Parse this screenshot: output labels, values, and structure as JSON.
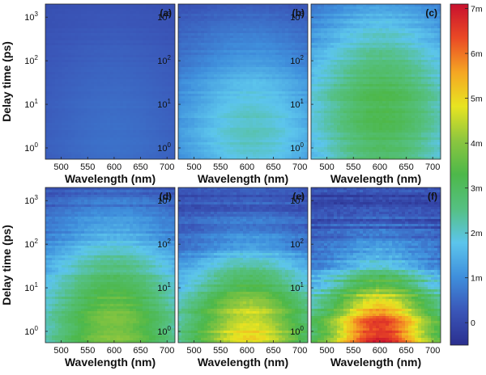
{
  "chart_data": {
    "type": "heatmap",
    "xlabel": "Wavelength (nm)",
    "ylabel": "Delay time (ps)",
    "x_ticks": [
      500,
      550,
      600,
      650,
      700
    ],
    "xlim": [
      470,
      715
    ],
    "y_scale": "log",
    "ylim": [
      0.55,
      2000
    ],
    "y_ticks": [
      1,
      10,
      100,
      1000
    ],
    "y_tick_labels": [
      {
        "base": "10",
        "exp": "0"
      },
      {
        "base": "10",
        "exp": "1"
      },
      {
        "base": "10",
        "exp": "2"
      },
      {
        "base": "10",
        "exp": "3"
      }
    ],
    "colorbar": {
      "min": -0.0005,
      "max": 0.0071,
      "ticks": [
        0,
        0.001,
        0.002,
        0.003,
        0.004,
        0.005,
        0.006,
        0.007
      ],
      "tick_labels": [
        "0",
        "1m",
        "2m",
        "3m",
        "4m",
        "5m",
        "6m",
        "7m"
      ],
      "colormap": [
        "#2b2f8f",
        "#3a56b8",
        "#3f8fdc",
        "#5cc5ec",
        "#55c082",
        "#4db84a",
        "#8cc63f",
        "#e8e421",
        "#f5a623",
        "#ea4a25",
        "#c8102e"
      ]
    },
    "panels": [
      {
        "label": "(a)",
        "peak_value": 0.0006,
        "peak_wavelength": 600,
        "peak_log_delay": 0.2,
        "spread_nm": 140,
        "decay_log": 3.0
      },
      {
        "label": "(b)",
        "peak_value": 0.0021,
        "peak_wavelength": 610,
        "peak_log_delay": 0.4,
        "spread_nm": 130,
        "decay_log": 2.2
      },
      {
        "label": "(c)",
        "peak_value": 0.0032,
        "peak_wavelength": 605,
        "peak_log_delay": 0.8,
        "spread_nm": 130,
        "decay_log": 2.6
      },
      {
        "label": "(d)",
        "peak_value": 0.0039,
        "peak_wavelength": 600,
        "peak_log_delay": 0.0,
        "spread_nm": 120,
        "decay_log": 2.3
      },
      {
        "label": "(e)",
        "peak_value": 0.005,
        "peak_wavelength": 605,
        "peak_log_delay": -0.2,
        "spread_nm": 110,
        "decay_log": 1.9
      },
      {
        "label": "(f)",
        "peak_value": 0.0068,
        "peak_wavelength": 600,
        "peak_log_delay": -0.2,
        "spread_nm": 95,
        "decay_log": 1.6
      }
    ]
  }
}
